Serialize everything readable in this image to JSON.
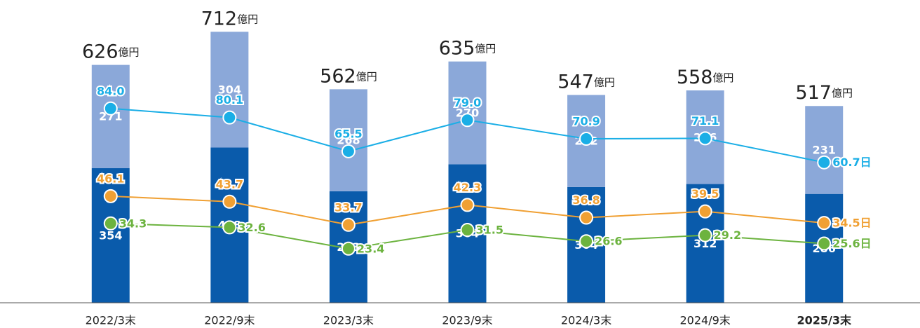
{
  "chart_data": {
    "type": "bar",
    "categories": [
      "2022/3末",
      "2022/9末",
      "2023/3末",
      "2023/9末",
      "2024/3末",
      "2024/9末",
      "2025/3末"
    ],
    "series": [
      {
        "type": "bar",
        "color": "#0a5bab",
        "values": [
          354,
          408,
          293,
          364,
          304,
          312,
          286
        ]
      },
      {
        "type": "bar",
        "color": "#8ba8d9",
        "values": [
          271,
          304,
          268,
          270,
          242,
          246,
          231
        ]
      },
      {
        "type": "line",
        "axis": "y2",
        "color": "#1aaee6",
        "values": [
          84.0,
          80.1,
          65.5,
          79.0,
          70.9,
          71.1,
          60.7
        ],
        "value_labels": [
          "84.0",
          "80.1",
          "65.5",
          "79.0",
          "70.9",
          "71.1",
          "60.7日"
        ]
      },
      {
        "type": "line",
        "axis": "y2",
        "color": "#f0a033",
        "values": [
          46.1,
          43.7,
          33.7,
          42.3,
          36.8,
          39.5,
          34.5
        ],
        "value_labels": [
          "46.1",
          "43.7",
          "33.7",
          "42.3",
          "36.8",
          "39.5",
          "34.5日"
        ]
      },
      {
        "type": "line",
        "axis": "y2",
        "color": "#6cb33f",
        "values": [
          34.3,
          32.6,
          23.4,
          31.5,
          26.6,
          29.2,
          25.6
        ],
        "value_labels": [
          "34.3",
          "32.6",
          "23.4",
          "31.5",
          "26.6",
          "29.2",
          "25.6日"
        ]
      }
    ],
    "total_labels": [
      "626",
      "712",
      "562",
      "635",
      "547",
      "558",
      "517"
    ],
    "total_unit": "億円",
    "ylim": [
      0,
      790
    ],
    "y2lim": [
      0,
      130
    ]
  }
}
